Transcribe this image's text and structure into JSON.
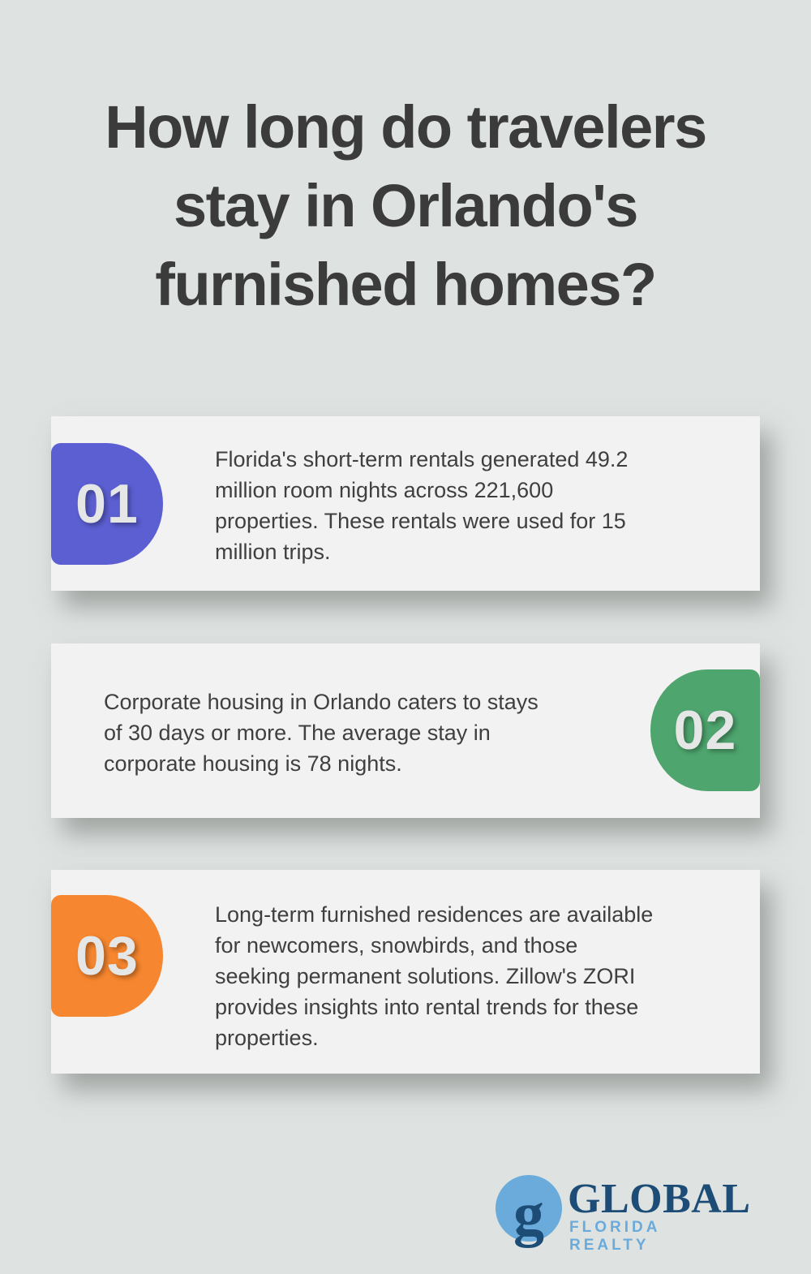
{
  "page": {
    "title": "How long do travelers\nstay in Orlando's\nfurnished homes?"
  },
  "colors": {
    "background": "#dee2e0",
    "card_background": "#f1f2f1",
    "title_text": "#3b3b3b",
    "body_text": "#3f3f3f",
    "badge_number_text": "#e5e6e6"
  },
  "cards": [
    {
      "number": "01",
      "color": "#5b5fd1",
      "badge_side": "left",
      "text": "Florida's short-term rentals generated 49.2\nmillion room nights across 221,600\nproperties. These rentals were used for 15\nmillion trips."
    },
    {
      "number": "02",
      "color": "#4ea56e",
      "badge_side": "right",
      "text": "Corporate housing in Orlando caters to stays\nof 30 days or more. The average stay in\ncorporate housing is 78 nights."
    },
    {
      "number": "03",
      "color": "#f6862f",
      "badge_side": "left",
      "text": "Long-term furnished residences are available\nfor newcomers, snowbirds, and those\nseeking permanent solutions. Zillow's ZORI\nprovides insights into rental trends for these\nproperties."
    }
  ],
  "logo": {
    "monogram": "g",
    "name": "GLOBAL",
    "subtitle": "FLORIDA REALTY",
    "dark_blue": "#1d4d77",
    "light_blue": "#6aabdb"
  }
}
